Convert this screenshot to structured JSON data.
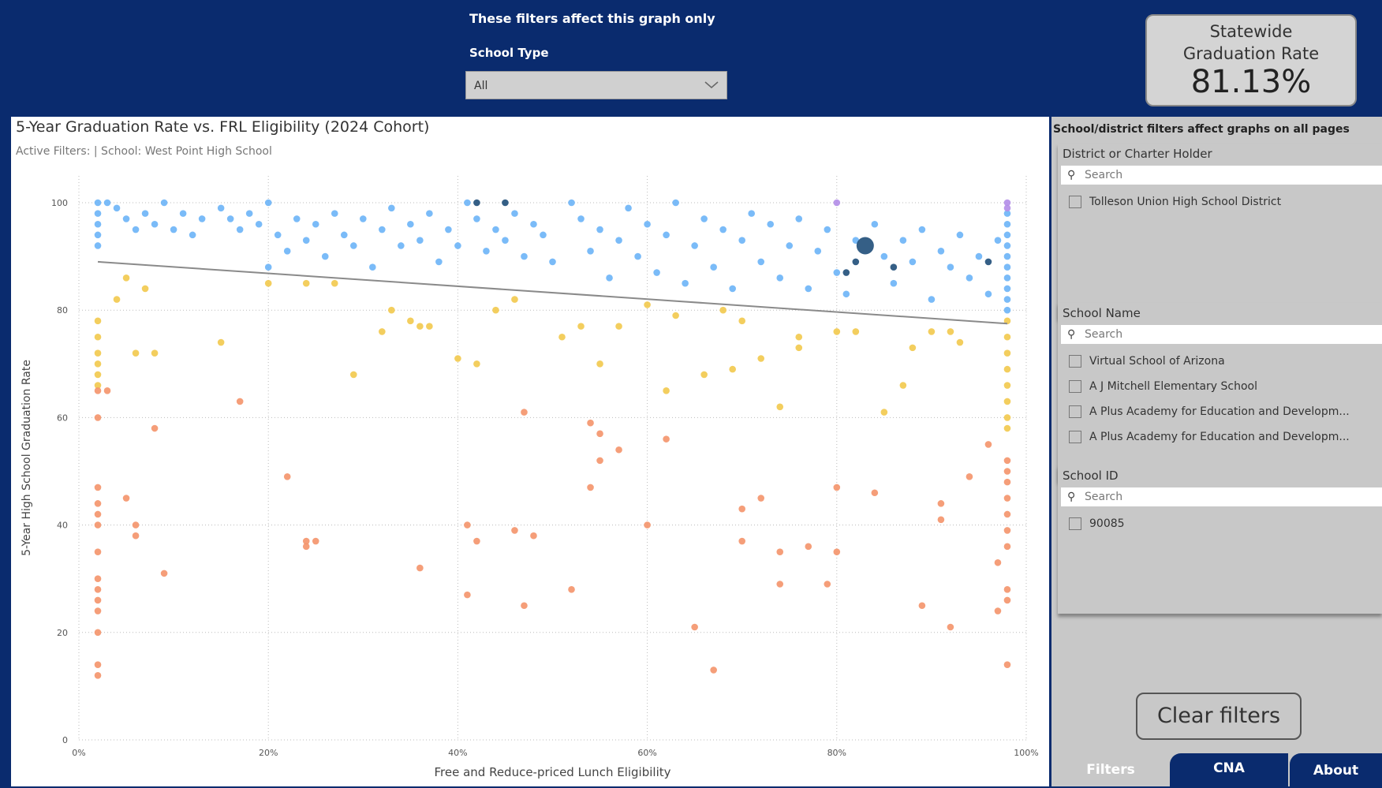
{
  "header": {
    "note": "These filters affect this graph only",
    "filter_label": "School Type",
    "filter_value": "All"
  },
  "card": {
    "title": "Statewide Graduation Rate",
    "value": "81.13%"
  },
  "filters": {
    "heading": "School/district filters affect graphs on all pages",
    "slicers": [
      {
        "title": "District or Charter Holder",
        "search": "Search",
        "items": [
          "Tolleson Union High School District"
        ]
      },
      {
        "title": "School Name",
        "search": "Search",
        "items": [
          "Virtual School of Arizona",
          "A J Mitchell Elementary School",
          "A Plus Academy for Education and Developm...",
          "A Plus Academy for Education and Developm..."
        ]
      },
      {
        "title": "School ID",
        "search": "Search",
        "items": [
          "90085"
        ]
      }
    ],
    "clear": "Clear filters"
  },
  "tabs": [
    "Filters",
    "CNA",
    "About"
  ],
  "chart_data": {
    "type": "scatter",
    "title": "5-Year Graduation Rate vs. FRL Eligibility (2024 Cohort)",
    "subtitle": "Active Filters: | School: West Point High School",
    "xlabel": "Free and Reduce-priced Lunch Eligibility",
    "ylabel": "5-Year High School Graduation Rate",
    "xlim": [
      0,
      100
    ],
    "ylim": [
      0,
      105
    ],
    "xticks": [
      {
        "value": 0,
        "label": "0%"
      },
      {
        "value": 20,
        "label": "20%"
      },
      {
        "value": 40,
        "label": "40%"
      },
      {
        "value": 60,
        "label": "60%"
      },
      {
        "value": 80,
        "label": "80%"
      },
      {
        "value": 100,
        "label": "100%"
      }
    ],
    "yticks": [
      0,
      20,
      40,
      60,
      80,
      100
    ],
    "grid": true,
    "series": [
      {
        "color": "#6cb4f7",
        "x": [
          2,
          2,
          2,
          2,
          2,
          3,
          4,
          5,
          6,
          7,
          8,
          9,
          10,
          11,
          12,
          13,
          15,
          16,
          17,
          18,
          19,
          20,
          20,
          21,
          22,
          23,
          24,
          25,
          26,
          27,
          28,
          29,
          30,
          31,
          32,
          33,
          34,
          35,
          36,
          37,
          38,
          39,
          40,
          41,
          42,
          43,
          44,
          45,
          46,
          47,
          48,
          49,
          50,
          52,
          53,
          54,
          55,
          56,
          57,
          58,
          59,
          60,
          61,
          62,
          63,
          64,
          65,
          66,
          67,
          68,
          69,
          70,
          71,
          72,
          73,
          74,
          75,
          76,
          77,
          78,
          79,
          80,
          81,
          82,
          84,
          85,
          86,
          87,
          88,
          89,
          90,
          91,
          92,
          93,
          94,
          95,
          96,
          97,
          98,
          98,
          98,
          98,
          98,
          98,
          98,
          98,
          98,
          98
        ],
        "values": [
          100,
          98,
          96,
          94,
          92,
          100,
          99,
          97,
          95,
          98,
          96,
          100,
          95,
          98,
          94,
          97,
          99,
          97,
          95,
          98,
          96,
          100,
          88,
          94,
          91,
          97,
          93,
          96,
          90,
          98,
          94,
          92,
          97,
          88,
          95,
          99,
          92,
          96,
          93,
          98,
          89,
          95,
          92,
          100,
          97,
          91,
          95,
          93,
          98,
          90,
          96,
          94,
          89,
          100,
          97,
          91,
          95,
          86,
          93,
          99,
          90,
          96,
          87,
          94,
          100,
          85,
          92,
          97,
          88,
          95,
          84,
          93,
          98,
          89,
          96,
          86,
          92,
          97,
          84,
          91,
          95,
          87,
          83,
          93,
          96,
          90,
          85,
          93,
          89,
          95,
          82,
          91,
          88,
          94,
          86,
          90,
          83,
          93,
          98,
          96,
          94,
          92,
          90,
          88,
          86,
          84,
          82,
          80
        ]
      },
      {
        "color": "#f2c94c",
        "x": [
          2,
          2,
          2,
          2,
          2,
          2,
          4,
          5,
          6,
          7,
          8,
          15,
          20,
          24,
          27,
          29,
          32,
          33,
          35,
          36,
          37,
          40,
          42,
          44,
          46,
          51,
          53,
          55,
          57,
          60,
          62,
          63,
          66,
          68,
          69,
          70,
          72,
          74,
          76,
          76,
          80,
          82,
          85,
          87,
          88,
          90,
          92,
          93,
          98,
          98,
          98,
          98,
          98,
          98,
          98,
          98
        ],
        "values": [
          78,
          75,
          72,
          70,
          68,
          66,
          82,
          86,
          72,
          84,
          72,
          74,
          85,
          85,
          85,
          68,
          76,
          80,
          78,
          77,
          77,
          71,
          70,
          80,
          82,
          75,
          77,
          70,
          77,
          81,
          65,
          79,
          68,
          80,
          69,
          78,
          71,
          62,
          75,
          73,
          76,
          76,
          61,
          66,
          73,
          76,
          76,
          74,
          78,
          75,
          72,
          69,
          66,
          63,
          60,
          58
        ]
      },
      {
        "color": "#f4936a",
        "x": [
          2,
          2,
          2,
          2,
          2,
          2,
          2,
          2,
          2,
          2,
          2,
          2,
          2,
          2,
          3,
          5,
          6,
          6,
          8,
          9,
          17,
          22,
          24,
          24,
          25,
          36,
          41,
          41,
          42,
          46,
          47,
          47,
          48,
          52,
          54,
          54,
          55,
          55,
          57,
          60,
          62,
          65,
          67,
          70,
          70,
          72,
          74,
          74,
          77,
          79,
          80,
          80,
          84,
          89,
          91,
          91,
          92,
          94,
          96,
          97,
          97,
          98,
          98,
          98,
          98,
          98,
          98,
          98,
          98,
          98,
          98
        ],
        "values": [
          47,
          44,
          42,
          40,
          35,
          30,
          28,
          26,
          24,
          20,
          14,
          12,
          65,
          60,
          65,
          45,
          38,
          40,
          58,
          31,
          63,
          49,
          37,
          36,
          37,
          32,
          27,
          40,
          37,
          39,
          25,
          61,
          38,
          28,
          47,
          59,
          57,
          52,
          54,
          40,
          56,
          21,
          13,
          43,
          37,
          45,
          35,
          29,
          36,
          29,
          35,
          47,
          46,
          25,
          44,
          41,
          21,
          49,
          55,
          33,
          24,
          52,
          50,
          48,
          45,
          42,
          39,
          36,
          28,
          26,
          14
        ]
      },
      {
        "color": "#b38de8",
        "x": [
          80,
          98,
          98
        ],
        "values": [
          100,
          100,
          99
        ]
      },
      {
        "color": "#1f4e79",
        "x": [
          42,
          45,
          81,
          82,
          86,
          96
        ],
        "values": [
          100,
          100,
          87,
          89,
          88,
          89
        ]
      }
    ],
    "highlight": {
      "color": "#1f4e79",
      "x": [
        83
      ],
      "values": [
        92
      ]
    },
    "trendline": {
      "color": "#8a8a8a",
      "x": [
        2,
        98
      ],
      "values": [
        89,
        77.5
      ]
    }
  }
}
